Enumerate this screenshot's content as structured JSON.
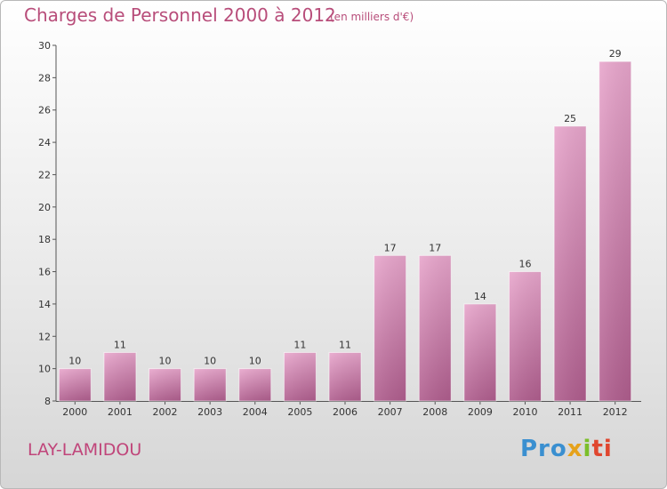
{
  "header": {
    "title": "Charges de Personnel 2000 à 2012",
    "subtitle": "(en milliers d'€)"
  },
  "footer": {
    "commune": "LAY-LAMIDOU",
    "logo_text": "Proxiti"
  },
  "colors": {
    "accent": "#b84d7a",
    "bar_top": "#e8a6cc",
    "bar_bottom": "#b05e8e"
  },
  "chart_data": {
    "type": "bar",
    "categories": [
      "2000",
      "2001",
      "2002",
      "2003",
      "2004",
      "2005",
      "2006",
      "2007",
      "2008",
      "2009",
      "2010",
      "2011",
      "2012"
    ],
    "values": [
      10,
      11,
      10,
      10,
      10,
      11,
      11,
      17,
      17,
      14,
      16,
      25,
      29
    ],
    "title": "Charges de Personnel 2000 à 2012",
    "subtitle": "(en milliers d'€)",
    "xlabel": "",
    "ylabel": "",
    "ylim": [
      8,
      30
    ],
    "yticks": [
      8,
      10,
      12,
      14,
      16,
      18,
      20,
      22,
      24,
      26,
      28,
      30
    ],
    "grid": false,
    "data_labels": true
  }
}
